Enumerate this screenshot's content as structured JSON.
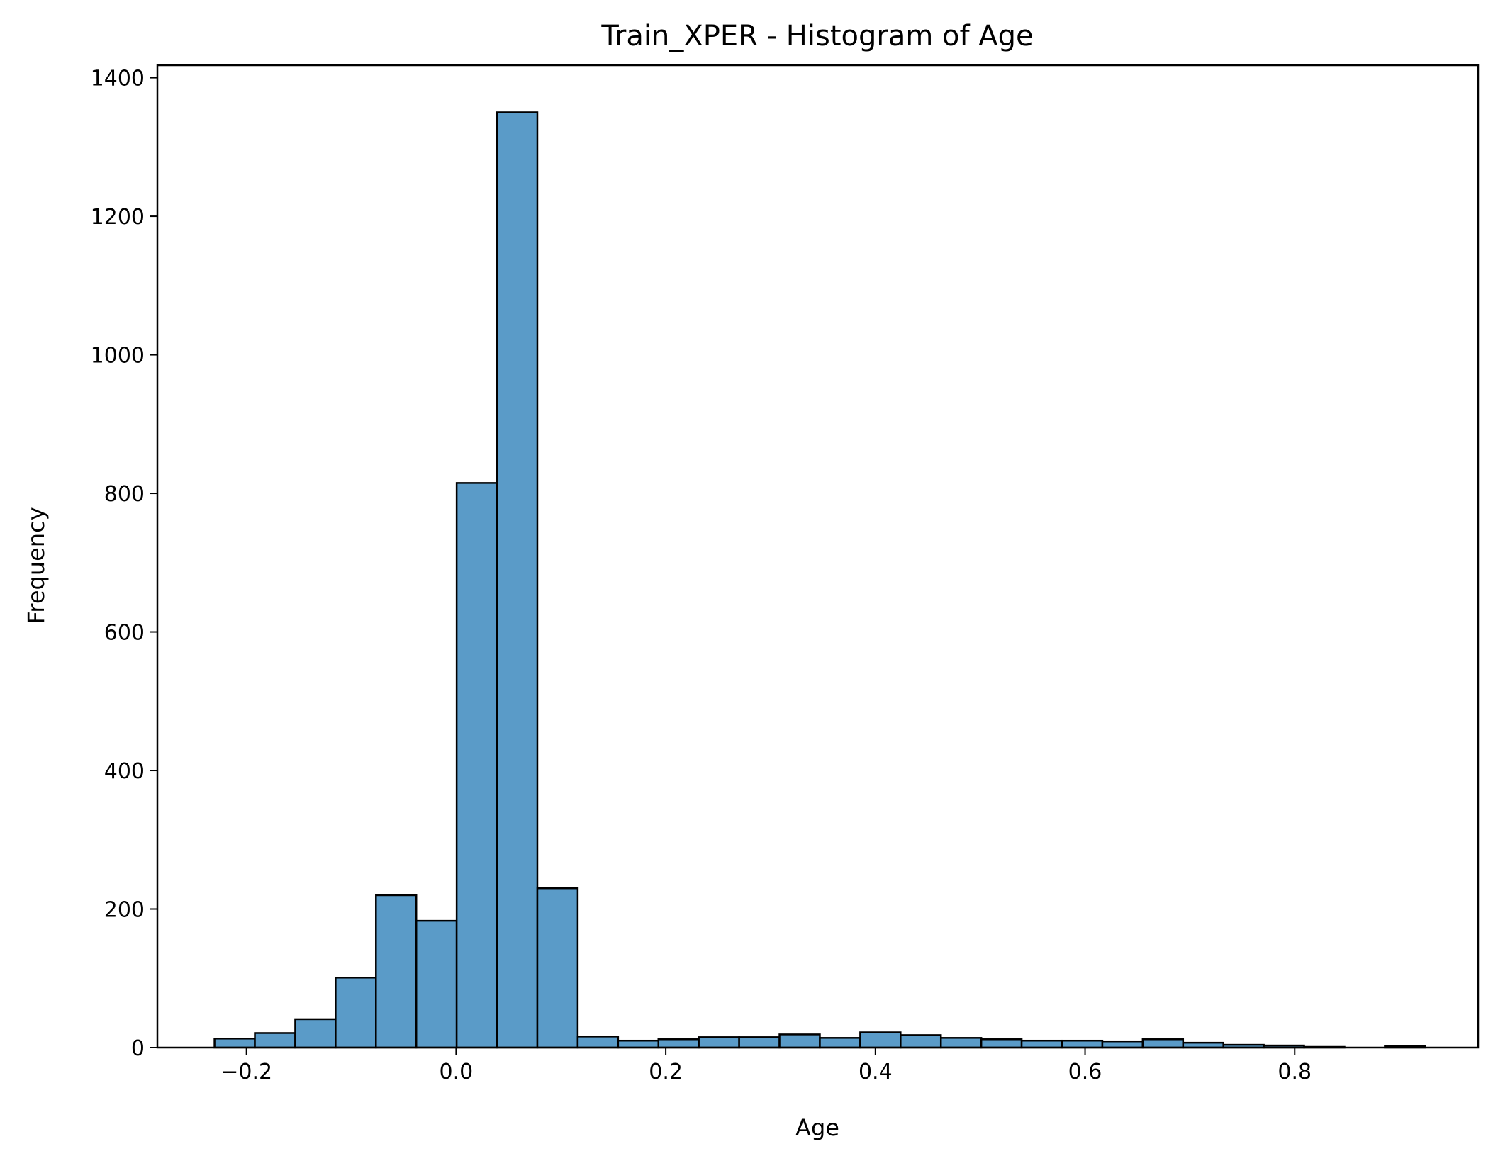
{
  "chart_data": {
    "type": "bar",
    "title": "Train_XPER - Histogram of Age",
    "xlabel": "Age",
    "ylabel": "Frequency",
    "xlim": [
      -0.285,
      0.975
    ],
    "ylim": [
      0,
      1418
    ],
    "x_ticks": [
      {
        "value": -0.2,
        "label": "−0.2"
      },
      {
        "value": 0.0,
        "label": "0.0"
      },
      {
        "value": 0.2,
        "label": "0.2"
      },
      {
        "value": 0.4,
        "label": "0.4"
      },
      {
        "value": 0.6,
        "label": "0.6"
      },
      {
        "value": 0.8,
        "label": "0.8"
      }
    ],
    "y_ticks": [
      {
        "value": 0,
        "label": "0"
      },
      {
        "value": 200,
        "label": "200"
      },
      {
        "value": 400,
        "label": "400"
      },
      {
        "value": 600,
        "label": "600"
      },
      {
        "value": 800,
        "label": "800"
      },
      {
        "value": 1000,
        "label": "1000"
      },
      {
        "value": 1200,
        "label": "1200"
      },
      {
        "value": 1400,
        "label": "1400"
      }
    ],
    "bins": [
      {
        "start": -0.2305,
        "end": -0.192,
        "count": 13
      },
      {
        "start": -0.192,
        "end": -0.1535,
        "count": 21
      },
      {
        "start": -0.1535,
        "end": -0.115,
        "count": 41
      },
      {
        "start": -0.115,
        "end": -0.0765,
        "count": 101
      },
      {
        "start": -0.0765,
        "end": -0.038,
        "count": 220
      },
      {
        "start": -0.038,
        "end": 0.0005,
        "count": 183
      },
      {
        "start": 0.0005,
        "end": 0.039,
        "count": 815
      },
      {
        "start": 0.039,
        "end": 0.0775,
        "count": 1350
      },
      {
        "start": 0.0775,
        "end": 0.116,
        "count": 230
      },
      {
        "start": 0.116,
        "end": 0.1545,
        "count": 16
      },
      {
        "start": 0.1545,
        "end": 0.193,
        "count": 10
      },
      {
        "start": 0.193,
        "end": 0.2315,
        "count": 12
      },
      {
        "start": 0.2315,
        "end": 0.27,
        "count": 15
      },
      {
        "start": 0.27,
        "end": 0.3085,
        "count": 15
      },
      {
        "start": 0.3085,
        "end": 0.347,
        "count": 19
      },
      {
        "start": 0.347,
        "end": 0.3855,
        "count": 14
      },
      {
        "start": 0.3855,
        "end": 0.424,
        "count": 22
      },
      {
        "start": 0.424,
        "end": 0.4625,
        "count": 18
      },
      {
        "start": 0.4625,
        "end": 0.501,
        "count": 14
      },
      {
        "start": 0.501,
        "end": 0.5395,
        "count": 12
      },
      {
        "start": 0.5395,
        "end": 0.578,
        "count": 10
      },
      {
        "start": 0.578,
        "end": 0.6165,
        "count": 10
      },
      {
        "start": 0.6165,
        "end": 0.655,
        "count": 9
      },
      {
        "start": 0.655,
        "end": 0.6935,
        "count": 12
      },
      {
        "start": 0.6935,
        "end": 0.732,
        "count": 7
      },
      {
        "start": 0.732,
        "end": 0.7705,
        "count": 4
      },
      {
        "start": 0.7705,
        "end": 0.809,
        "count": 3
      },
      {
        "start": 0.809,
        "end": 0.8475,
        "count": 1
      },
      {
        "start": 0.8475,
        "end": 0.886,
        "count": 0
      },
      {
        "start": 0.886,
        "end": 0.9245,
        "count": 2
      }
    ],
    "bar_color": "#5a9bc8",
    "edge_color": "#000000",
    "grid": false,
    "legend": "none"
  }
}
